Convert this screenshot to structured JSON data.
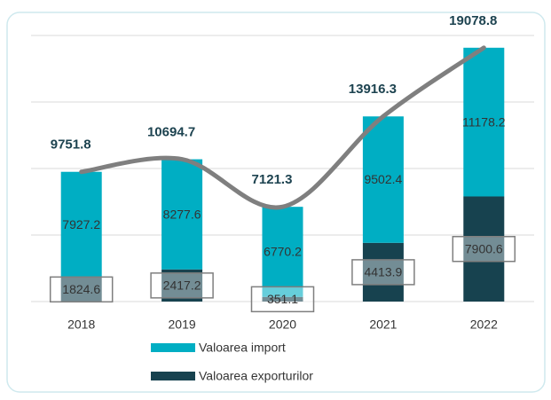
{
  "chart_data": {
    "type": "stacked_bar_line",
    "categories": [
      "2018",
      "2019",
      "2020",
      "2021",
      "2022"
    ],
    "series": [
      {
        "name": "Valoarea exporturilor",
        "color": "#17424f",
        "values": [
          1824.6,
          2417.2,
          351.1,
          4413.9,
          7900.6
        ]
      },
      {
        "name": "Valoarea import",
        "color": "#00aec3",
        "values": [
          7927.2,
          8277.6,
          6770.2,
          9502.4,
          11178.2
        ]
      }
    ],
    "line": {
      "color": "#7f7f7f",
      "values": [
        9751.8,
        10694.7,
        7121.3,
        13916.3,
        19078.8
      ]
    },
    "ylim": [
      0,
      20000
    ],
    "yticks": [
      0,
      5000,
      10000,
      15000,
      20000
    ],
    "grid": true
  }
}
